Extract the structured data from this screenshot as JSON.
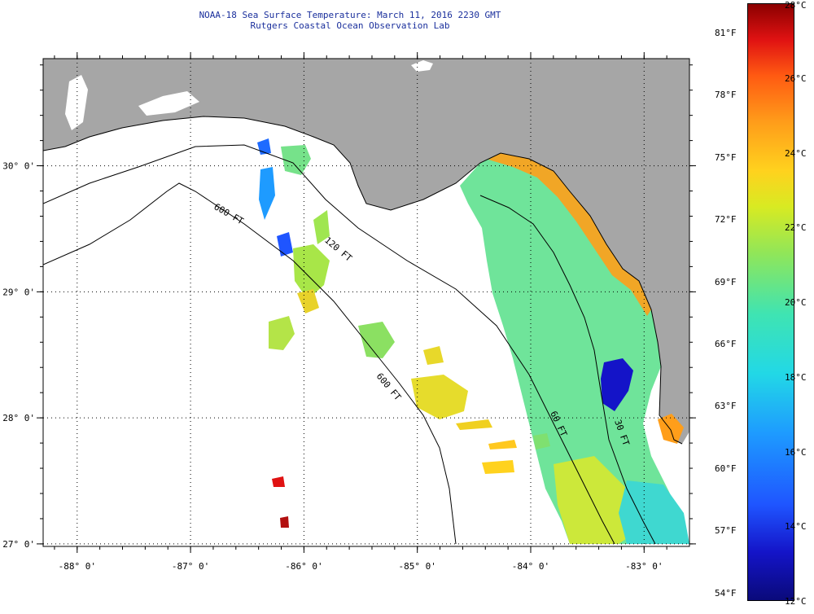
{
  "title": {
    "line1": "NOAA-18 Sea Surface Temperature:  March 11, 2016 2230 GMT",
    "line2": "Rutgers Coastal Ocean Observation Lab"
  },
  "map": {
    "lon_range": [
      -88.3,
      -82.6
    ],
    "lat_range": [
      26.98,
      30.85
    ],
    "lon_ticks": [
      {
        "value": -88,
        "label": "-88° 0'"
      },
      {
        "value": -87,
        "label": "-87° 0'"
      },
      {
        "value": -86,
        "label": "-86° 0'"
      },
      {
        "value": -85,
        "label": "-85° 0'"
      },
      {
        "value": -84,
        "label": "-84° 0'"
      },
      {
        "value": -83,
        "label": "-83° 0'"
      }
    ],
    "lat_ticks": [
      {
        "value": 30,
        "label": "30° 0'"
      },
      {
        "value": 29,
        "label": "29° 0'"
      },
      {
        "value": 28,
        "label": "28° 0'"
      },
      {
        "value": 27,
        "label": "27° 0'"
      }
    ],
    "isobath_labels": {
      "deep_west": "600 FT",
      "shelf": "120 FT",
      "deep_south": "600 FT",
      "mid": "60 FT",
      "inner": "30 FT"
    },
    "colors": {
      "land": "#a6a6a6",
      "no_data": "#ffffff",
      "grid": "#000000"
    }
  },
  "colorbar": {
    "range_c": [
      12,
      28
    ],
    "range_f": [
      54,
      82
    ],
    "celsius_labels": [
      "28°C",
      "26°C",
      "24°C",
      "22°C",
      "20°C",
      "18°C",
      "16°C",
      "14°C",
      "12°C"
    ],
    "fahrenheit_labels": [
      "81°F",
      "78°F",
      "75°F",
      "72°F",
      "69°F",
      "66°F",
      "63°F",
      "60°F",
      "57°F",
      "54°F"
    ]
  }
}
